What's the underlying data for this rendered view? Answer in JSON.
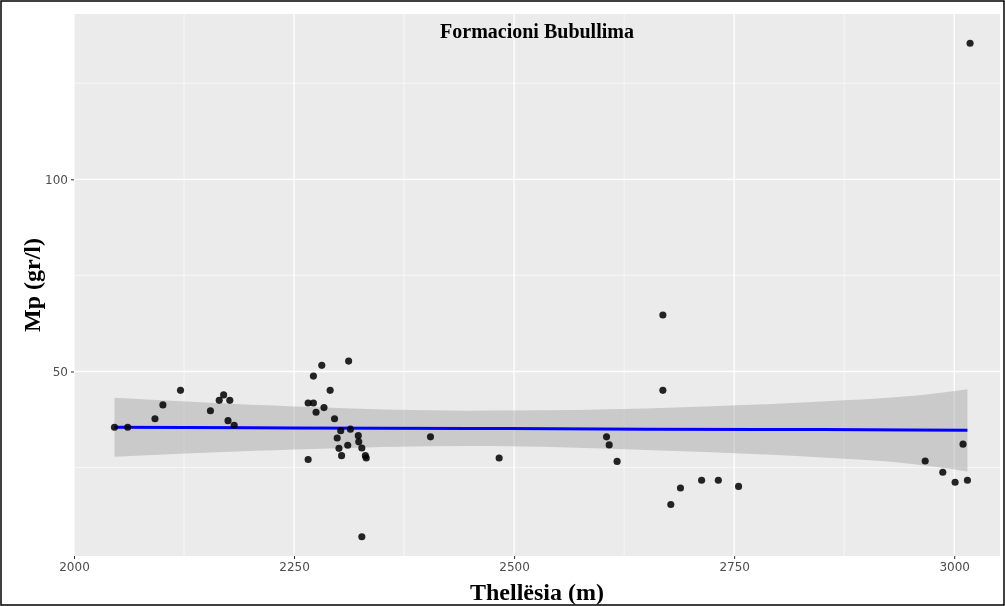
{
  "chart_data": {
    "type": "scatter",
    "title": "Formacioni Bubullima",
    "xlabel": "Thellësia (m)",
    "ylabel": "Mp (gr/l)",
    "xlim": [
      2000,
      3052
    ],
    "ylim": [
      2,
      143
    ],
    "xticks": [
      2000,
      2250,
      2500,
      2750,
      3000
    ],
    "yticks": [
      50,
      100
    ],
    "grid": true,
    "marker": "circle",
    "series": [
      {
        "color": "#000000",
        "x": [
          2046,
          2061,
          2092,
          2101,
          2121,
          2155,
          2165,
          2170,
          2177,
          2175,
          2182,
          2281.5,
          2312,
          2272,
          2291,
          2266,
          2272,
          2275,
          2284,
          2296,
          2303,
          2314,
          2299,
          2323,
          2323.5,
          2311,
          2301,
          2327,
          2304,
          2331,
          2332,
          2266,
          2327,
          2669,
          2669,
          2405,
          2483,
          2605,
          2608,
          2617,
          2689,
          2678,
          2713,
          2732,
          2755,
          2967,
          2987,
          3001,
          3015,
          3010,
          3018
        ],
        "values": [
          35.5,
          35.5,
          37.7,
          41.3,
          45.1,
          39.8,
          42.5,
          43.9,
          42.5,
          37.2,
          36.0,
          51.6,
          52.7,
          48.8,
          45.1,
          41.8,
          41.8,
          39.4,
          40.6,
          37.7,
          34.6,
          35.0,
          32.7,
          33.3,
          31.7,
          30.8,
          30.0,
          30.1,
          28.1,
          28.1,
          27.5,
          27.1,
          7.0,
          64.7,
          45.1,
          33.0,
          27.5,
          33.0,
          30.9,
          26.6,
          19.7,
          15.4,
          21.7,
          21.7,
          20.1,
          26.7,
          23.8,
          21.2,
          21.7,
          31.1,
          135.4
        ]
      },
      {
        "type": "line",
        "color": "#0000ff",
        "line_style": "solid",
        "marker": "none",
        "x": [
          2046,
          2250,
          2450,
          2650,
          2850,
          2950,
          3015
        ],
        "values": [
          35.5,
          35.3,
          35.2,
          35.0,
          34.9,
          34.8,
          34.7
        ],
        "lower": [
          27.8,
          29.7,
          30.6,
          29.6,
          27.6,
          26.0,
          24.0
        ],
        "upper": [
          43.2,
          40.9,
          39.8,
          40.4,
          42.2,
          43.6,
          45.4
        ]
      }
    ]
  }
}
